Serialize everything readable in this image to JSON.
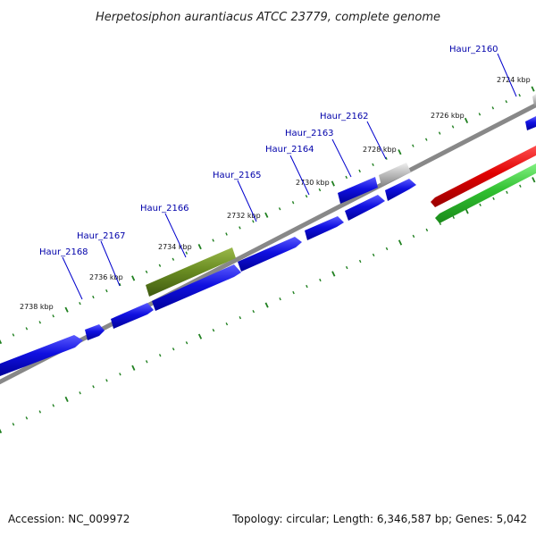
{
  "title": "Herpetosiphon aurantiacus ATCC 23779, complete genome",
  "footer": {
    "accession": "Accession: NC_009972",
    "summary": "Topology: circular; Length: 6,346,587 bp; Genes: 5,042"
  },
  "colors": {
    "forward_cds": "#1010e0",
    "reverse_cds": "#e00000",
    "rna": "#30c030",
    "olive_gene": "#6b8e23",
    "gray_gene": "#c0c0c0",
    "backbone": "#888888",
    "tick": "#208020",
    "label": "#0000aa"
  },
  "kbp_labels": [
    {
      "text": "2724 kbp",
      "kbp": 2724
    },
    {
      "text": "2726 kbp",
      "kbp": 2726
    },
    {
      "text": "2728 kbp",
      "kbp": 2728
    },
    {
      "text": "2730 kbp",
      "kbp": 2730
    },
    {
      "text": "2732 kbp",
      "kbp": 2732
    },
    {
      "text": "2734 kbp",
      "kbp": 2734
    },
    {
      "text": "2736 kbp",
      "kbp": 2736
    },
    {
      "text": "2738 kbp",
      "kbp": 2738
    }
  ],
  "genes": [
    {
      "label": "Haur_2160",
      "kind": "forward"
    },
    {
      "label": "Haur_2162",
      "kind": "gray"
    },
    {
      "label": "Haur_2163",
      "kind": "forward"
    },
    {
      "label": "Haur_2164",
      "kind": "forward"
    },
    {
      "label": "Haur_2165",
      "kind": "forward"
    },
    {
      "label": "Haur_2166",
      "kind": "olive"
    },
    {
      "label": "Haur_2167",
      "kind": "forward"
    },
    {
      "label": "Haur_2168",
      "kind": "forward"
    }
  ]
}
